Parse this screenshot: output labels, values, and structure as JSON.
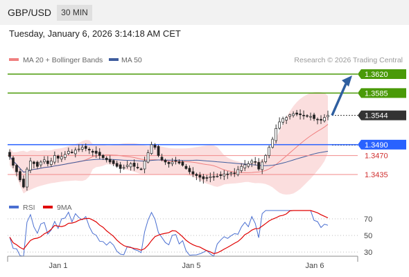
{
  "header": {
    "symbol": "GBP/USD",
    "timeframe": "30 MIN"
  },
  "timestamp": "Tuesday, January 6, 2026 3:14:18 AM CET",
  "legend": {
    "bb": "MA 20 + Bollinger Bands",
    "ma50": "MA 50",
    "source": "Research © 2026 Trading Central",
    "rsi": "RSI",
    "rsi_ma": "9MA"
  },
  "colors": {
    "candle_up": "#2e7d32",
    "candle_down": "#c62828",
    "bb_fill": "#f8c8c8",
    "ma20": "#f08080",
    "ma50": "#3f5d9e",
    "target": "#4a9a08",
    "pivot": "#2962ff",
    "support": "#f08a8a",
    "rsi": "#4a6fd1",
    "rsi_ma": "#e00000",
    "arrow": "#2f5fa0",
    "current": "#333333"
  },
  "chart_data": {
    "type": "candlestick",
    "title": "",
    "x_ticks": [
      "Jan 1",
      "Jan 5",
      "Jan 6"
    ],
    "ylim": [
      1.3395,
      1.364
    ],
    "levels": [
      {
        "value": 1.362,
        "label": "1.3620",
        "role": "target"
      },
      {
        "value": 1.3585,
        "label": "1.3585",
        "role": "target"
      },
      {
        "value": 1.349,
        "label": "1.3490",
        "role": "pivot"
      },
      {
        "value": 1.347,
        "label": "1.3470",
        "role": "support"
      },
      {
        "value": 1.3435,
        "label": "1.3435",
        "role": "support"
      }
    ],
    "current_price": {
      "value": 1.3544,
      "label": "1.3544"
    },
    "candles_approx_close": [
      1.3468,
      1.3452,
      1.344,
      1.3425,
      1.3412,
      1.3445,
      1.346,
      1.3455,
      1.345,
      1.3458,
      1.3462,
      1.3455,
      1.346,
      1.347,
      1.3465,
      1.3468,
      1.3472,
      1.3478,
      1.3476,
      1.348,
      1.3482,
      1.3485,
      1.3483,
      1.348,
      1.3476,
      1.3474,
      1.347,
      1.3466,
      1.3462,
      1.3458,
      1.3455,
      1.345,
      1.3446,
      1.3448,
      1.3452,
      1.3455,
      1.345,
      1.3448,
      1.3445,
      1.346,
      1.3475,
      1.349,
      1.3485,
      1.347,
      1.3462,
      1.3458,
      1.3455,
      1.3458,
      1.346,
      1.3456,
      1.3452,
      1.3446,
      1.344,
      1.3436,
      1.3433,
      1.343,
      1.3427,
      1.3428,
      1.3431,
      1.343,
      1.3432,
      1.3433,
      1.3436,
      1.3435,
      1.3438,
      1.3437,
      1.3444,
      1.345,
      1.3453,
      1.3455,
      1.346,
      1.3458,
      1.3445,
      1.3458,
      1.347,
      1.3485,
      1.35,
      1.352,
      1.3532,
      1.3538,
      1.354,
      1.3545,
      1.3547,
      1.3546,
      1.3545,
      1.3544,
      1.3543,
      1.3542,
      1.3538,
      1.3536,
      1.3535,
      1.354,
      1.3544
    ],
    "rsi_axis": [
      30,
      50,
      70
    ],
    "rsi_ylim": [
      20,
      85
    ]
  }
}
